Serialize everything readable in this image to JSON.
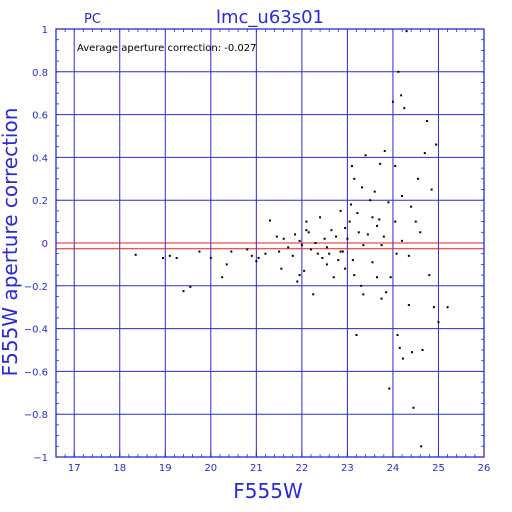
{
  "chart_data": {
    "type": "scatter",
    "title": "lmc_u63s01",
    "subtitle": "PC",
    "annotation": "Average aperture correction: -0.027",
    "xlabel": "F555W",
    "ylabel": "F555W aperture correction",
    "xlim": [
      16.6,
      26
    ],
    "ylim": [
      -1,
      1
    ],
    "xticks": [
      17,
      18,
      19,
      20,
      21,
      22,
      23,
      24,
      25,
      26
    ],
    "yticks": [
      -1,
      -0.8,
      -0.6,
      -0.4,
      -0.2,
      0,
      0.2,
      0.4,
      0.6,
      0.8,
      1
    ],
    "ytick_labels": [
      "−1",
      "−0.8",
      "−0.6",
      "−0.4",
      "−0.2",
      "0",
      "0.2",
      "0.4",
      "0.6",
      "0.8",
      "1"
    ],
    "grid": true,
    "reference_lines": [
      {
        "y": 0,
        "color": "#e02020"
      },
      {
        "y": -0.027,
        "color": "#e02020"
      }
    ],
    "colors": {
      "axis": "#2a2ad8",
      "grid": "#2a2ad8",
      "reference": "#e02020",
      "points": "#000000"
    },
    "points": [
      [
        18.35,
        -0.055
      ],
      [
        18.95,
        -0.07
      ],
      [
        19.1,
        -0.06
      ],
      [
        19.25,
        -0.07
      ],
      [
        19.4,
        -0.225
      ],
      [
        19.55,
        -0.205
      ],
      [
        19.75,
        -0.04
      ],
      [
        20.0,
        -0.07
      ],
      [
        20.25,
        -0.16
      ],
      [
        20.35,
        -0.1
      ],
      [
        20.45,
        -0.04
      ],
      [
        20.8,
        -0.03
      ],
      [
        20.9,
        -0.06
      ],
      [
        21.0,
        -0.085
      ],
      [
        21.05,
        -0.07
      ],
      [
        21.3,
        0.105
      ],
      [
        21.45,
        0.03
      ],
      [
        21.5,
        -0.04
      ],
      [
        21.55,
        -0.12
      ],
      [
        21.6,
        0.02
      ],
      [
        21.7,
        -0.02
      ],
      [
        21.8,
        -0.06
      ],
      [
        21.85,
        0.04
      ],
      [
        21.9,
        -0.18
      ],
      [
        21.95,
        0.01
      ],
      [
        22.0,
        -0.01
      ],
      [
        22.05,
        -0.13
      ],
      [
        22.1,
        0.1
      ],
      [
        22.15,
        0.05
      ],
      [
        22.2,
        -0.03
      ],
      [
        22.25,
        -0.24
      ],
      [
        22.3,
        0.0
      ],
      [
        22.35,
        -0.05
      ],
      [
        22.4,
        0.12
      ],
      [
        22.45,
        -0.07
      ],
      [
        22.5,
        0.02
      ],
      [
        22.55,
        -0.1
      ],
      [
        22.6,
        -0.05
      ],
      [
        22.65,
        0.06
      ],
      [
        22.7,
        -0.16
      ],
      [
        22.75,
        0.03
      ],
      [
        22.8,
        -0.08
      ],
      [
        22.85,
        0.15
      ],
      [
        22.9,
        -0.04
      ],
      [
        22.95,
        -0.12
      ],
      [
        23.0,
        0.02
      ],
      [
        23.05,
        0.1
      ],
      [
        23.08,
        0.18
      ],
      [
        23.1,
        0.36
      ],
      [
        23.12,
        -0.08
      ],
      [
        23.15,
        0.3
      ],
      [
        23.2,
        -0.43
      ],
      [
        23.22,
        0.14
      ],
      [
        23.25,
        0.05
      ],
      [
        23.3,
        -0.2
      ],
      [
        23.32,
        0.26
      ],
      [
        23.35,
        -0.24
      ],
      [
        23.4,
        0.41
      ],
      [
        23.45,
        0.04
      ],
      [
        23.5,
        0.2
      ],
      [
        23.55,
        -0.09
      ],
      [
        23.6,
        0.24
      ],
      [
        23.65,
        -0.16
      ],
      [
        23.7,
        0.11
      ],
      [
        23.72,
        0.37
      ],
      [
        23.75,
        -0.26
      ],
      [
        23.8,
        0.03
      ],
      [
        23.82,
        0.43
      ],
      [
        23.85,
        -0.23
      ],
      [
        23.9,
        0.19
      ],
      [
        23.92,
        -0.68
      ],
      [
        23.95,
        -0.16
      ],
      [
        24.0,
        0.66
      ],
      [
        24.05,
        0.1
      ],
      [
        24.08,
        -0.05
      ],
      [
        24.1,
        -0.43
      ],
      [
        24.12,
        0.8
      ],
      [
        24.15,
        -0.49
      ],
      [
        24.18,
        0.69
      ],
      [
        24.2,
        0.01
      ],
      [
        24.22,
        -0.54
      ],
      [
        24.25,
        0.63
      ],
      [
        24.3,
        0.99
      ],
      [
        24.35,
        -0.29
      ],
      [
        24.4,
        0.17
      ],
      [
        24.42,
        -0.51
      ],
      [
        24.45,
        -0.77
      ],
      [
        24.5,
        0.1
      ],
      [
        24.55,
        0.3
      ],
      [
        24.6,
        0.05
      ],
      [
        24.62,
        -0.95
      ],
      [
        24.65,
        -0.5
      ],
      [
        24.7,
        0.42
      ],
      [
        24.75,
        0.57
      ],
      [
        24.8,
        -0.15
      ],
      [
        24.85,
        0.25
      ],
      [
        24.9,
        -0.3
      ],
      [
        24.95,
        0.46
      ],
      [
        25.0,
        -0.37
      ],
      [
        25.2,
        -0.3
      ],
      [
        24.05,
        0.36
      ],
      [
        23.55,
        0.12
      ],
      [
        22.95,
        0.07
      ],
      [
        23.15,
        -0.15
      ],
      [
        23.65,
        0.08
      ],
      [
        24.2,
        0.22
      ],
      [
        21.2,
        -0.05
      ],
      [
        22.1,
        0.06
      ],
      [
        21.95,
        -0.15
      ],
      [
        23.35,
        -0.01
      ],
      [
        22.55,
        -0.02
      ],
      [
        23.75,
        -0.01
      ],
      [
        24.35,
        -0.06
      ],
      [
        22.85,
        -0.04
      ]
    ]
  }
}
